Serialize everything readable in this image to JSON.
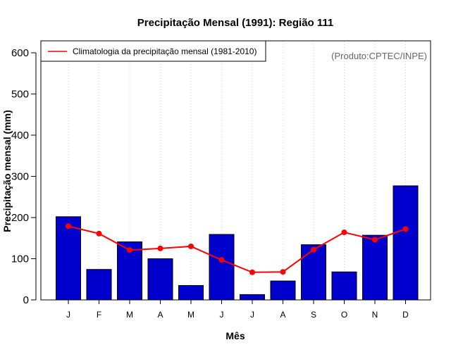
{
  "chart_data": {
    "type": "bar",
    "title": "Precipitação Mensal (1991): Região 111",
    "xlabel": "Mês",
    "ylabel": "Precipitação mensal (mm)",
    "ylim": [
      0,
      600
    ],
    "yticks": [
      0,
      100,
      200,
      300,
      400,
      500,
      600
    ],
    "categories": [
      "J",
      "F",
      "M",
      "A",
      "M",
      "J",
      "J",
      "A",
      "S",
      "O",
      "N",
      "D"
    ],
    "series": [
      {
        "name": "Precipitação mensal (1991)",
        "type": "bar",
        "color": "#0000cc",
        "values": [
          202,
          74,
          141,
          100,
          35,
          159,
          13,
          46,
          134,
          68,
          157,
          277
        ]
      },
      {
        "name": "Climatologia da precipitação mensal (1981-2010)",
        "type": "line",
        "color": "#ff0000",
        "values": [
          179,
          161,
          121,
          125,
          130,
          97,
          67,
          68,
          122,
          164,
          146,
          172
        ]
      }
    ],
    "legend": {
      "position": "top-left",
      "label": "Climatologia da precipitação mensal (1981-2010)"
    },
    "credit": "(Produto:CPTEC/INPE)",
    "grid": "vertical dotted"
  }
}
